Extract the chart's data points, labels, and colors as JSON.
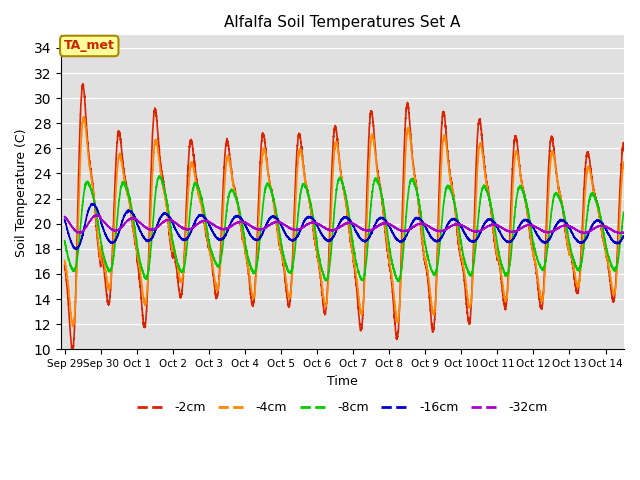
{
  "title": "Alfalfa Soil Temperatures Set A",
  "xlabel": "Time",
  "ylabel": "Soil Temperature (C)",
  "ylim": [
    10,
    35
  ],
  "yticks": [
    10,
    12,
    14,
    16,
    18,
    20,
    22,
    24,
    26,
    28,
    30,
    32,
    34
  ],
  "bg_color": "#e0e0e0",
  "annotation_text": "TA_met",
  "annotation_color": "#cc2200",
  "annotation_bg": "#ffff99",
  "series": {
    "-2cm": {
      "color": "#dd2200",
      "lw": 1.2
    },
    "-4cm": {
      "color": "#ff8800",
      "lw": 1.2
    },
    "-8cm": {
      "color": "#00cc00",
      "lw": 1.2
    },
    "-16cm": {
      "color": "#0000cc",
      "lw": 1.2
    },
    "-32cm": {
      "color": "#aa00cc",
      "lw": 1.2
    }
  },
  "tick_labels": [
    "Sep 29",
    "Sep 30",
    "Oct 1",
    "Oct 2",
    "Oct 3",
    "Oct 4",
    "Oct 5",
    "Oct 6",
    "Oct 7",
    "Oct 8",
    "Oct 9",
    "Oct 10",
    "Oct 11",
    "Oct 12",
    "Oct 13",
    "Oct 14"
  ],
  "tick_positions": [
    0,
    1,
    2,
    3,
    4,
    5,
    6,
    7,
    8,
    9,
    10,
    11,
    12,
    13,
    14,
    15
  ]
}
